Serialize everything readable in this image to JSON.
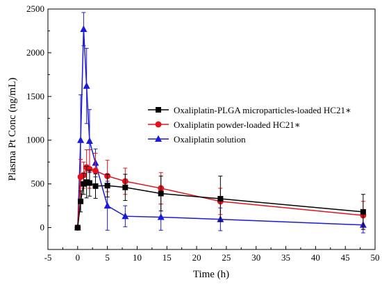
{
  "chart_data": {
    "type": "line",
    "title": "",
    "xlabel": "Time (h)",
    "ylabel": "Plasma Pt Conc (ng/mL)",
    "xlim": [
      -5,
      50
    ],
    "ylim": [
      -250,
      2500
    ],
    "xticks": [
      -5,
      0,
      5,
      10,
      15,
      20,
      25,
      30,
      35,
      40,
      45,
      50
    ],
    "yticks": [
      0,
      500,
      1000,
      1500,
      2000,
      2500
    ],
    "grid": false,
    "legend_position": "center-right",
    "series": [
      {
        "name": "Oxaliplatin-PLGA microparticles-loaded HC21∗",
        "color": "#000000",
        "marker": "square",
        "x": [
          0,
          0.5,
          1,
          1.5,
          2,
          3,
          5,
          8,
          14,
          24,
          48
        ],
        "y": [
          0,
          300,
          500,
          520,
          510,
          475,
          480,
          460,
          390,
          330,
          180
        ],
        "err": [
          0,
          120,
          120,
          180,
          150,
          140,
          130,
          150,
          200,
          260,
          200
        ]
      },
      {
        "name": "Oxaliplatin powder-loaded HC21∗",
        "color": "#e8101a",
        "marker": "circle",
        "x": [
          0,
          0.5,
          1,
          1.5,
          2,
          3,
          5,
          8,
          14,
          24,
          48
        ],
        "y": [
          0,
          580,
          600,
          690,
          670,
          650,
          590,
          530,
          450,
          300,
          140
        ],
        "err": [
          0,
          200,
          150,
          200,
          220,
          200,
          180,
          150,
          180,
          150,
          160
        ]
      },
      {
        "name": "Oxaliplatin solution",
        "color": "#1a1ad8",
        "marker": "triangle",
        "x": [
          0,
          0.5,
          1,
          1.5,
          2,
          3,
          5,
          8,
          14,
          24,
          48
        ],
        "y": [
          0,
          1000,
          2270,
          1620,
          990,
          740,
          250,
          130,
          120,
          95,
          30
        ],
        "err": [
          0,
          520,
          190,
          430,
          360,
          160,
          280,
          120,
          150,
          130,
          90
        ]
      }
    ]
  }
}
